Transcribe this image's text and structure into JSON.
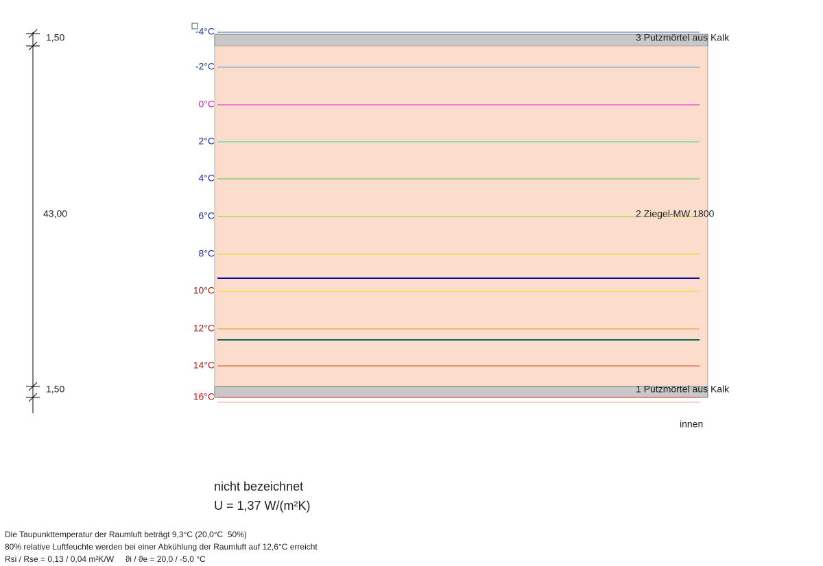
{
  "dimensions": [
    "1,50",
    "43,00",
    "1,50"
  ],
  "isotherms": [
    "-4°C",
    "-2°C",
    "0°C",
    "2°C",
    "4°C",
    "6°C",
    "8°C",
    "10°C",
    "12°C",
    "14°C",
    "16°C"
  ],
  "layers": [
    "3 Putzmörtel aus Kalk",
    "2 Ziegel-MW 1800",
    "1 Putzmörtel aus Kalk"
  ],
  "side_label": "innen",
  "construction": {
    "name": "nicht bezeichnet",
    "u_value": "U = 1,37 W/(m²K)"
  },
  "notes": [
    "Die Taupunkttemperatur der Raumluft beträgt 9,3°C (20,0°C  50%)",
    "80% relative Luftfeuchte werden bei einer Abkühlung der Raumluft auf 12,6°C erreicht",
    "Rsi / Rse = 0,13 / 0,04 m²K/W     ϑi / ϑe = 20,0 / -5,0 °C"
  ]
}
